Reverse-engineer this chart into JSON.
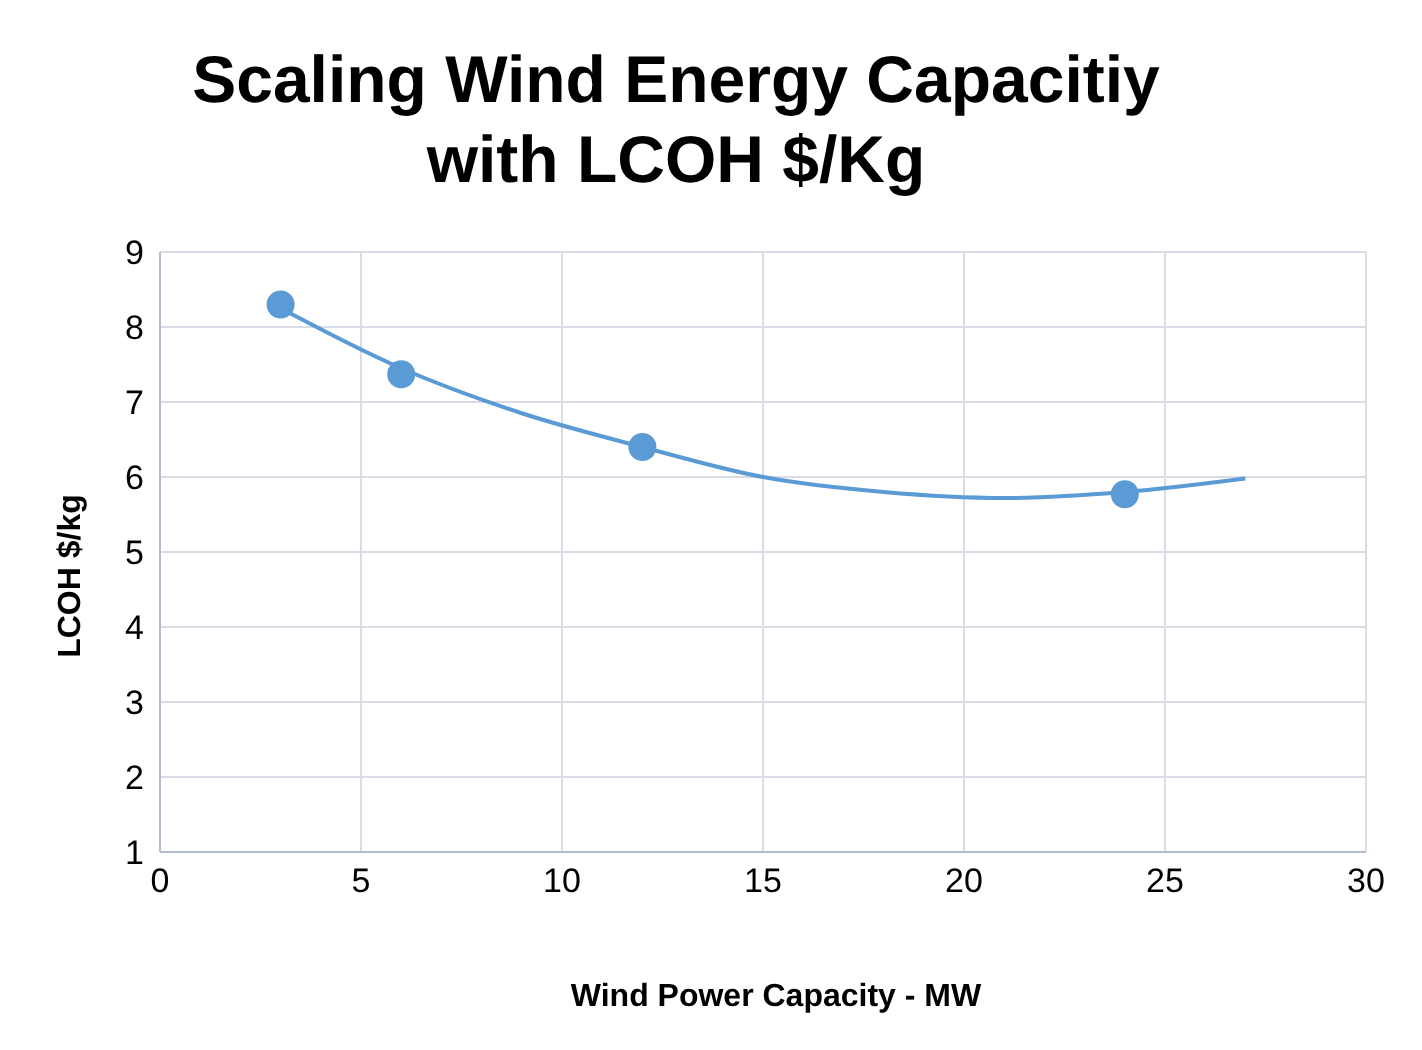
{
  "chart_data": {
    "type": "scatter",
    "title": "Scaling Wind Energy Capacitiy with LCOH $/Kg",
    "xlabel": "Wind Power Capacity - MW",
    "ylabel": "LCOH $/kg",
    "xlim": [
      0,
      30
    ],
    "xticks": [
      0,
      5,
      10,
      15,
      20,
      25,
      30
    ],
    "ylim": [
      1,
      9
    ],
    "yticks": [
      1,
      2,
      3,
      4,
      5,
      6,
      7,
      8,
      9
    ],
    "grid": true,
    "marker": "circle",
    "series": [
      {
        "color": "#5b9bd5",
        "x": [
          3,
          6,
          12,
          24
        ],
        "values": [
          8.3,
          7.37,
          6.4,
          5.77
        ]
      },
      {
        "type": "line",
        "color": "#5b9bd5",
        "marker": "none",
        "x": [
          3,
          6,
          9,
          12,
          15,
          18,
          21,
          24,
          27
        ],
        "values": [
          8.25,
          7.45,
          6.85,
          6.4,
          6.0,
          5.8,
          5.72,
          5.8,
          5.98
        ]
      }
    ]
  }
}
